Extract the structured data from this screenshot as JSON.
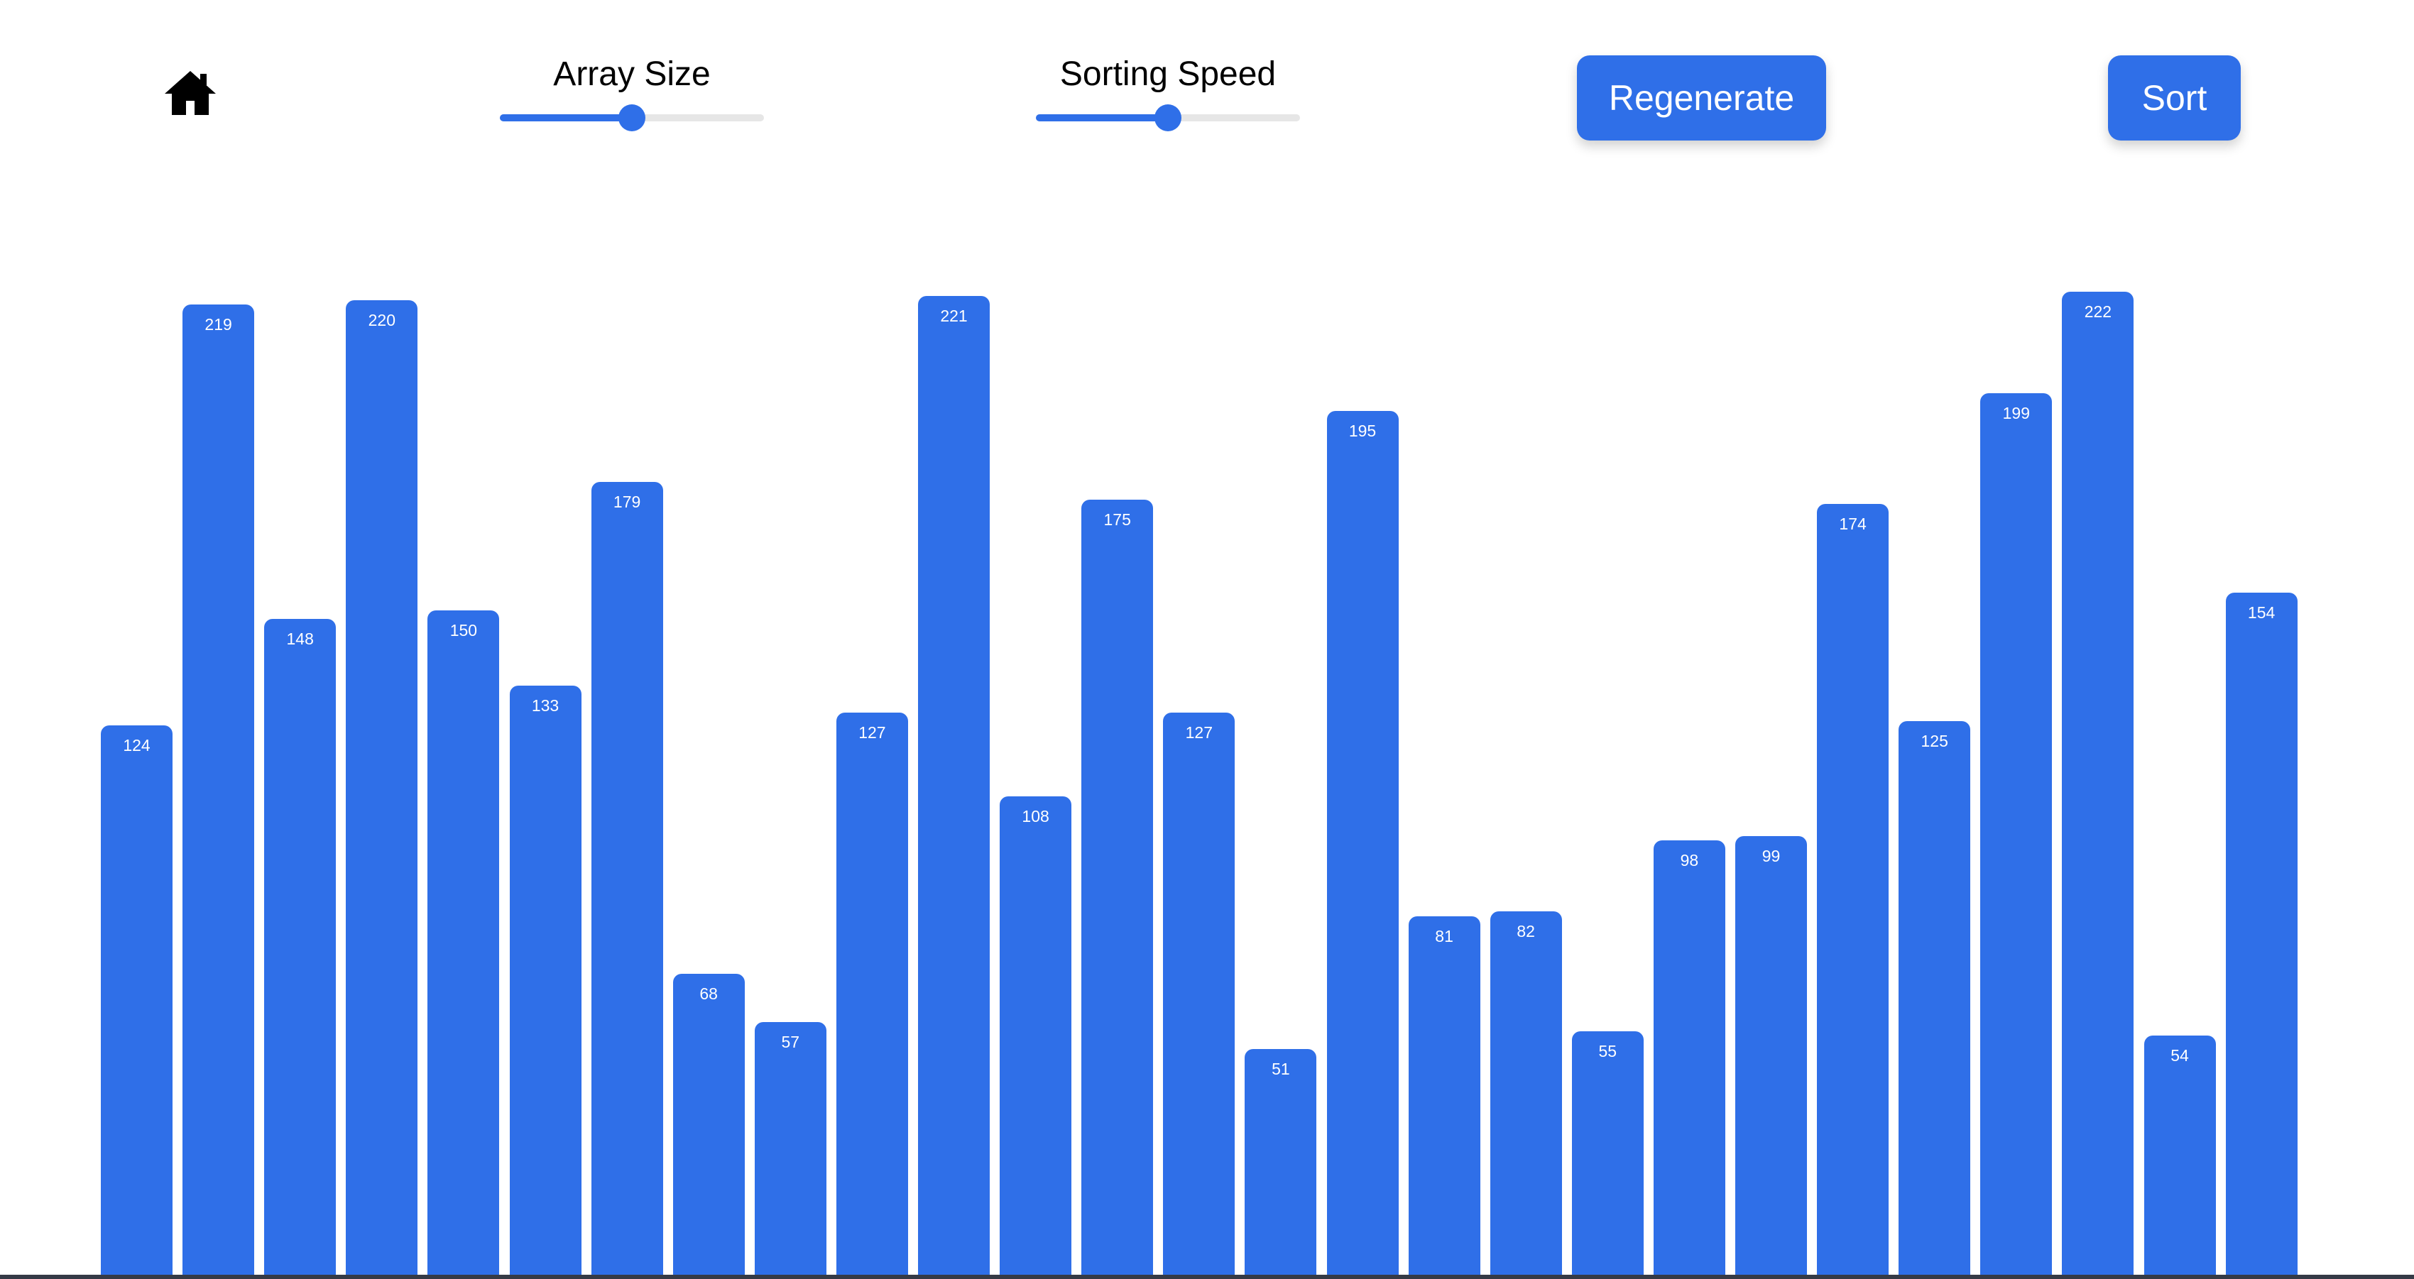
{
  "colors": {
    "accent": "#2f6fe8",
    "track": "#e6e6e6",
    "background": "#ffffff",
    "bottom_edge": "#353a46"
  },
  "toolbar": {
    "home_icon": "home-icon",
    "array_size": {
      "label": "Array Size",
      "value_fraction": 0.5
    },
    "sorting_speed": {
      "label": "Sorting Speed",
      "value_fraction": 0.5
    },
    "regenerate_label": "Regenerate",
    "sort_label": "Sort"
  },
  "chart_data": {
    "type": "bar",
    "values": [
      124,
      219,
      148,
      220,
      150,
      133,
      179,
      68,
      57,
      127,
      221,
      108,
      175,
      127,
      51,
      195,
      81,
      82,
      55,
      98,
      99,
      174,
      125,
      199,
      222,
      54,
      154
    ]
  }
}
